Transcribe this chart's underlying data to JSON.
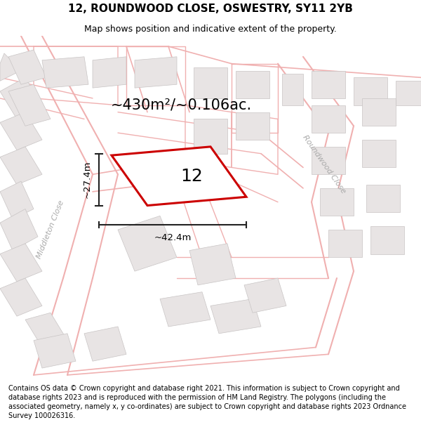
{
  "title": "12, ROUNDWOOD CLOSE, OSWESTRY, SY11 2YB",
  "subtitle": "Map shows position and indicative extent of the property.",
  "area_text": "~430m²/~0.106ac.",
  "property_number": "12",
  "dim_width": "~42.4m",
  "dim_height": "~27.4m",
  "street_label_left": "Middleton Close",
  "street_label_right": "Roundwood Close",
  "footer": "Contains OS data © Crown copyright and database right 2021. This information is subject to Crown copyright and database rights 2023 and is reproduced with the permission of HM Land Registry. The polygons (including the associated geometry, namely x, y co-ordinates) are subject to Crown copyright and database rights 2023 Ordnance Survey 100026316.",
  "map_bg": "#ffffff",
  "road_color": "#f0b0b0",
  "road_lw": 1.0,
  "plot_outline_color": "#f0b0b0",
  "building_color": "#e8e4e4",
  "building_edge": "#c8c4c4",
  "property_fill": "#ffffff",
  "property_edge": "#cc0000",
  "dim_color": "#222222",
  "title_fontsize": 11,
  "subtitle_fontsize": 9,
  "area_fontsize": 15,
  "property_label_fontsize": 18,
  "street_fontsize": 8,
  "footer_fontsize": 7.0
}
